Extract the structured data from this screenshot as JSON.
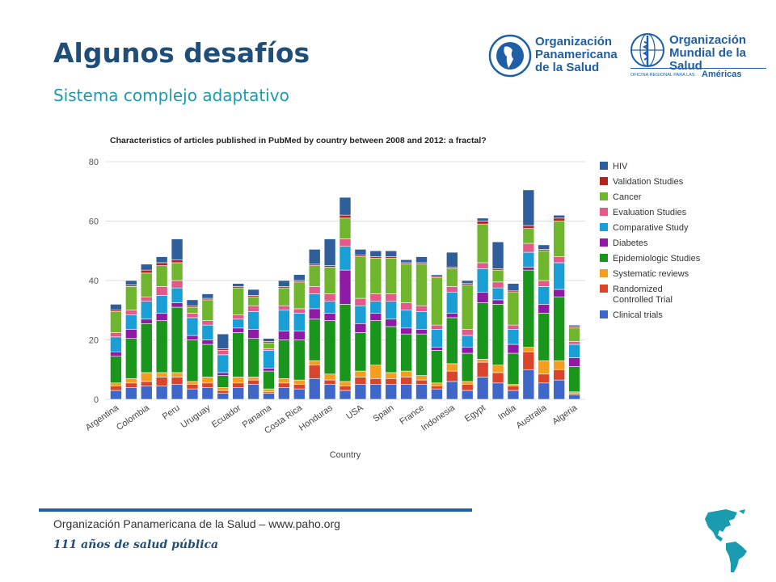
{
  "slide": {
    "title": "Algunos desafíos",
    "subtitle": "Sistema complejo adaptativo"
  },
  "logos": {
    "paho_line1": "Organización",
    "paho_line2": "Panamericana",
    "paho_line3": "de la Salud",
    "who_line1": "Organización",
    "who_line2": "Mundial de la Salud",
    "who_regional": "OFICINA REGIONAL PARA LAS",
    "who_regional_accent": "Américas"
  },
  "footer": {
    "org": "Organización Panamericana de la Salud",
    "separator": "–",
    "url": "www.paho.org",
    "motto": "111 años de salud pública"
  },
  "colors": {
    "title": "#1f4e79",
    "subtitle": "#1a9bb0",
    "footer_bar": "#1f5fa6"
  },
  "chart_data": {
    "type": "bar",
    "stacked": true,
    "title": "Characteristics of articles published in PubMed by country between 2008 and 2012: a fractal?",
    "xlabel": "Country",
    "ylabel": "",
    "ylim": [
      0,
      80
    ],
    "yticks": [
      0,
      20,
      40,
      60,
      80
    ],
    "grid": true,
    "legend_position": "right",
    "categories": [
      "Argentina",
      "",
      "Colombia",
      "",
      "Peru",
      "",
      "Uruguay",
      "",
      "Ecuador",
      "",
      "Panama",
      "",
      "Costa Rica",
      "",
      "Honduras",
      "",
      "USA",
      "",
      "Spain",
      "",
      "France",
      "",
      "Indonesia",
      "",
      "Egypt",
      "",
      "India",
      "",
      "Australia",
      "",
      "Algeria"
    ],
    "series": [
      {
        "name": "Clinical trials",
        "color": "#3f67c8",
        "values": [
          3,
          4,
          4.5,
          4.5,
          5,
          3.5,
          4,
          2,
          4,
          5,
          2,
          4,
          3.5,
          7,
          5,
          3,
          5,
          5,
          5,
          5,
          5,
          3.5,
          6,
          3,
          7.5,
          5.5,
          3,
          10,
          5.5,
          6.5,
          1.5
        ]
      },
      {
        "name": "Randomized Controlled Trial",
        "color": "#d9452b",
        "values": [
          1.5,
          1.5,
          1.5,
          3,
          2.5,
          1.5,
          1.5,
          1,
          1.5,
          1.5,
          0.5,
          1.5,
          1.5,
          4.5,
          1.5,
          1.5,
          2.5,
          2,
          2,
          2.5,
          1.5,
          1,
          3.5,
          2,
          5,
          3.5,
          1.5,
          6,
          3,
          3.5,
          0.5
        ]
      },
      {
        "name": "Systematic reviews",
        "color": "#f49e1f",
        "values": [
          1,
          1.5,
          3,
          1.5,
          1.5,
          1,
          2,
          1,
          2,
          1,
          1,
          1.5,
          1.5,
          1.5,
          2,
          1.5,
          2,
          4.5,
          2,
          2,
          1.5,
          1,
          2.5,
          1,
          1,
          2.5,
          0.5,
          1.5,
          4.5,
          3,
          0.5
        ]
      },
      {
        "name": "Epidemiologic Studies",
        "color": "#1a961c",
        "values": [
          9,
          13.5,
          16.5,
          17.5,
          22,
          14,
          11,
          4,
          15,
          13,
          6,
          13,
          13.5,
          14,
          18,
          26,
          13,
          15,
          15.5,
          12.5,
          14,
          11,
          15.5,
          9.5,
          19,
          20.5,
          10.5,
          26,
          16,
          21.5,
          8.5
        ]
      },
      {
        "name": "Diabetes",
        "color": "#8e1aa5",
        "values": [
          1.5,
          3,
          1.5,
          2.5,
          1.5,
          1.5,
          1.5,
          1,
          1.5,
          3,
          1,
          3,
          3,
          3.5,
          2.5,
          11.5,
          3,
          2.5,
          2.5,
          2,
          1.5,
          1,
          1.5,
          2,
          3.5,
          1.5,
          3,
          1,
          3,
          2.5,
          3
        ]
      },
      {
        "name": "Comparative Study",
        "color": "#1a9ed6",
        "values": [
          5,
          5,
          6,
          6,
          5,
          6,
          5,
          6,
          3,
          6,
          6,
          7,
          6,
          5,
          4,
          8,
          6,
          4,
          6,
          6,
          6,
          6,
          7,
          4,
          8,
          4,
          5,
          5,
          6,
          9,
          4.5
        ]
      },
      {
        "name": "Evaluation Studies",
        "color": "#e35a8a",
        "values": [
          1.5,
          1.5,
          1.5,
          3,
          2.5,
          1.5,
          1.5,
          1.5,
          1.5,
          2,
          0.5,
          1.5,
          1.5,
          2.5,
          2.5,
          2.5,
          2.5,
          2.5,
          2.5,
          2.5,
          2,
          1.5,
          2,
          2,
          2,
          2,
          1.5,
          3,
          2,
          2,
          1
        ]
      },
      {
        "name": "Cancer",
        "color": "#6fb52d",
        "values": [
          7,
          8,
          8,
          7,
          6,
          2,
          7,
          0,
          9,
          3,
          2,
          6,
          9,
          7,
          9,
          7,
          14,
          12,
          12,
          13,
          14,
          16,
          6,
          15,
          13,
          4,
          11,
          5,
          10,
          12,
          4.5
        ]
      },
      {
        "name": "Validation Studies",
        "color": "#b52222",
        "values": [
          0.5,
          0.5,
          1,
          1,
          1,
          0.5,
          0.5,
          0.5,
          0.5,
          0.5,
          0.5,
          0.5,
          0.5,
          0.5,
          0.5,
          1,
          0.5,
          0.5,
          0.5,
          0.5,
          0.5,
          0.5,
          0.5,
          0.5,
          1,
          0.5,
          0.5,
          1,
          0.5,
          1,
          0.5
        ]
      },
      {
        "name": "HIV",
        "color": "#2f5f9a",
        "values": [
          2,
          1.5,
          2,
          2,
          7,
          2,
          1.5,
          5,
          1,
          2,
          1,
          2,
          2,
          5,
          9,
          6,
          2,
          2,
          2,
          1,
          2,
          0.5,
          5,
          1,
          1,
          9,
          2.5,
          12,
          1.5,
          1,
          0.5
        ]
      }
    ]
  }
}
